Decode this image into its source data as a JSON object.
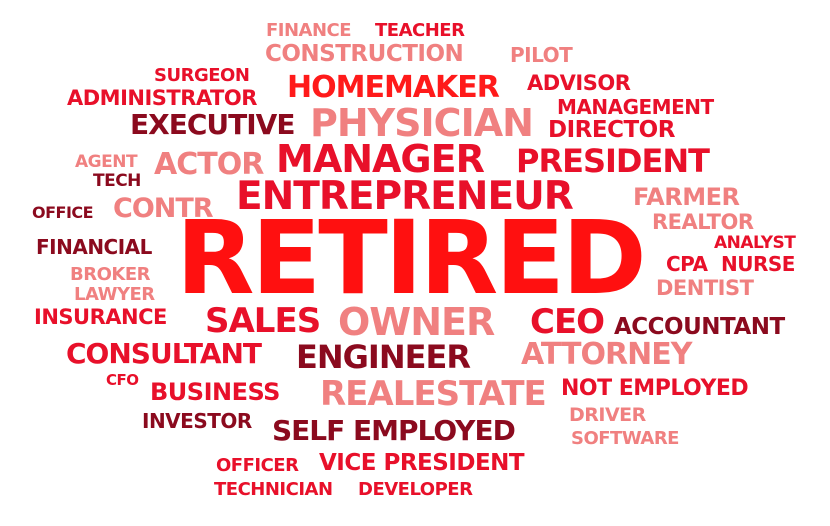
{
  "colors": {
    "red": "#ff1a1a",
    "crimson": "#e8102a",
    "dark": "#8b0a1e",
    "pink": "#f08080"
  },
  "words": [
    {
      "text": "RETIRED",
      "color": "#ff1010"
    },
    {
      "text": "ENTREPRENEUR",
      "color": "#e8102a"
    },
    {
      "text": "MANAGER",
      "color": "#e8102a"
    },
    {
      "text": "OWNER",
      "color": "#f08080"
    },
    {
      "text": "PHYSICIAN",
      "color": "#f08080"
    },
    {
      "text": "ENGINEER",
      "color": "#8b0a1e"
    },
    {
      "text": "REALESTATE",
      "color": "#f08080"
    },
    {
      "text": "PRESIDENT",
      "color": "#e8102a"
    },
    {
      "text": "HOMEMAKER",
      "color": "#ff1a1a"
    },
    {
      "text": "SALES",
      "color": "#e8102a"
    },
    {
      "text": "CEO",
      "color": "#e8102a"
    },
    {
      "text": "CONSULTANT",
      "color": "#e8102a"
    },
    {
      "text": "ATTORNEY",
      "color": "#f08080"
    },
    {
      "text": "SELF EMPLOYED",
      "color": "#8b0a1e"
    },
    {
      "text": "EXECUTIVE",
      "color": "#8b0a1e"
    },
    {
      "text": "ACTOR",
      "color": "#f08080"
    },
    {
      "text": "CONSTRUCTION",
      "color": "#f08080"
    },
    {
      "text": "BUSINESS",
      "color": "#e8102a"
    },
    {
      "text": "VICE PRESIDENT",
      "color": "#e8102a"
    },
    {
      "text": "CONTR",
      "color": "#f08080"
    },
    {
      "text": "DIRECTOR",
      "color": "#e8102a"
    },
    {
      "text": "NOT EMPLOYED",
      "color": "#e8102a"
    },
    {
      "text": "ACCOUNTANT",
      "color": "#8b0a1e"
    },
    {
      "text": "MANAGEMENT",
      "color": "#e8102a"
    },
    {
      "text": "ADMINISTRATOR",
      "color": "#e8102a"
    },
    {
      "text": "ADVISOR",
      "color": "#e8102a"
    },
    {
      "text": "FARMER",
      "color": "#f08080"
    },
    {
      "text": "INSURANCE",
      "color": "#e8102a"
    },
    {
      "text": "FINANCIAL",
      "color": "#8b0a1e"
    },
    {
      "text": "INVESTOR",
      "color": "#8b0a1e"
    },
    {
      "text": "REALTOR",
      "color": "#f08080"
    },
    {
      "text": "DENTIST",
      "color": "#f08080"
    },
    {
      "text": "CPA",
      "color": "#e8102a"
    },
    {
      "text": "NURSE",
      "color": "#e8102a"
    },
    {
      "text": "ANALYST",
      "color": "#e8102a"
    },
    {
      "text": "SURGEON",
      "color": "#e8102a"
    },
    {
      "text": "TEACHER",
      "color": "#e8102a"
    },
    {
      "text": "FINANCE",
      "color": "#f08080"
    },
    {
      "text": "PILOT",
      "color": "#f08080"
    },
    {
      "text": "BROKER",
      "color": "#f08080"
    },
    {
      "text": "LAWYER",
      "color": "#f08080"
    },
    {
      "text": "AGENT",
      "color": "#f08080"
    },
    {
      "text": "TECH",
      "color": "#8b0a1e"
    },
    {
      "text": "OFFICE",
      "color": "#8b0a1e"
    },
    {
      "text": "CFO",
      "color": "#e8102a"
    },
    {
      "text": "DRIVER",
      "color": "#f08080"
    },
    {
      "text": "SOFTWARE",
      "color": "#f08080"
    },
    {
      "text": "OFFICER",
      "color": "#e8102a"
    },
    {
      "text": "TECHNICIAN",
      "color": "#e8102a"
    },
    {
      "text": "DEVELOPER",
      "color": "#e8102a"
    }
  ]
}
